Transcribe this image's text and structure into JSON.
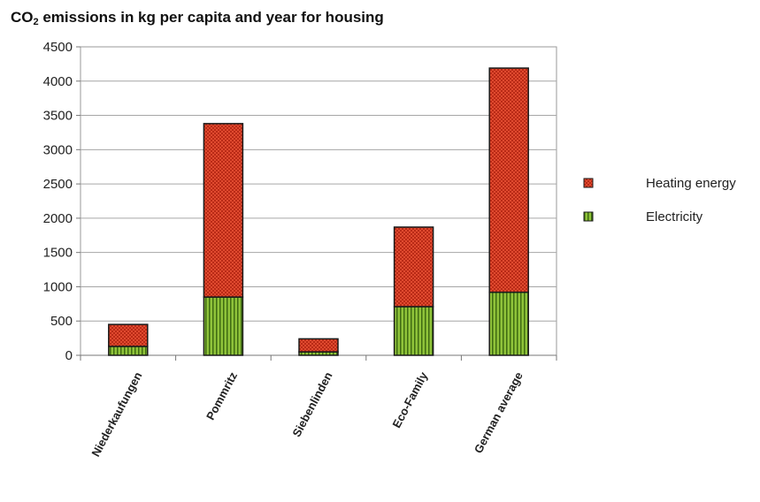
{
  "chart_data": {
    "type": "bar",
    "stacked": true,
    "title": {
      "prefix": "CO",
      "subscript": "2",
      "suffix": " emissions in kg per capita and year for housing"
    },
    "xlabel": "",
    "ylabel": "",
    "ylim": [
      0,
      4500
    ],
    "yticks": [
      0,
      500,
      1000,
      1500,
      2000,
      2500,
      3000,
      3500,
      4000,
      4500
    ],
    "grid": true,
    "legend_position": "right",
    "categories": [
      "Niederkaufungen",
      "Pommritz",
      "Siebenlinden",
      "Eco-Family",
      "German average"
    ],
    "series": [
      {
        "name": "Electricity",
        "values": [
          130,
          850,
          50,
          710,
          920
        ],
        "color": "#8fc33a",
        "stripe": "#3f6b12"
      },
      {
        "name": "Heating energy",
        "values": [
          320,
          2530,
          190,
          1160,
          3270
        ],
        "color": "#e04a2f",
        "stripe": "#a32010"
      }
    ],
    "legend_order": [
      "Heating energy",
      "Electricity"
    ]
  }
}
